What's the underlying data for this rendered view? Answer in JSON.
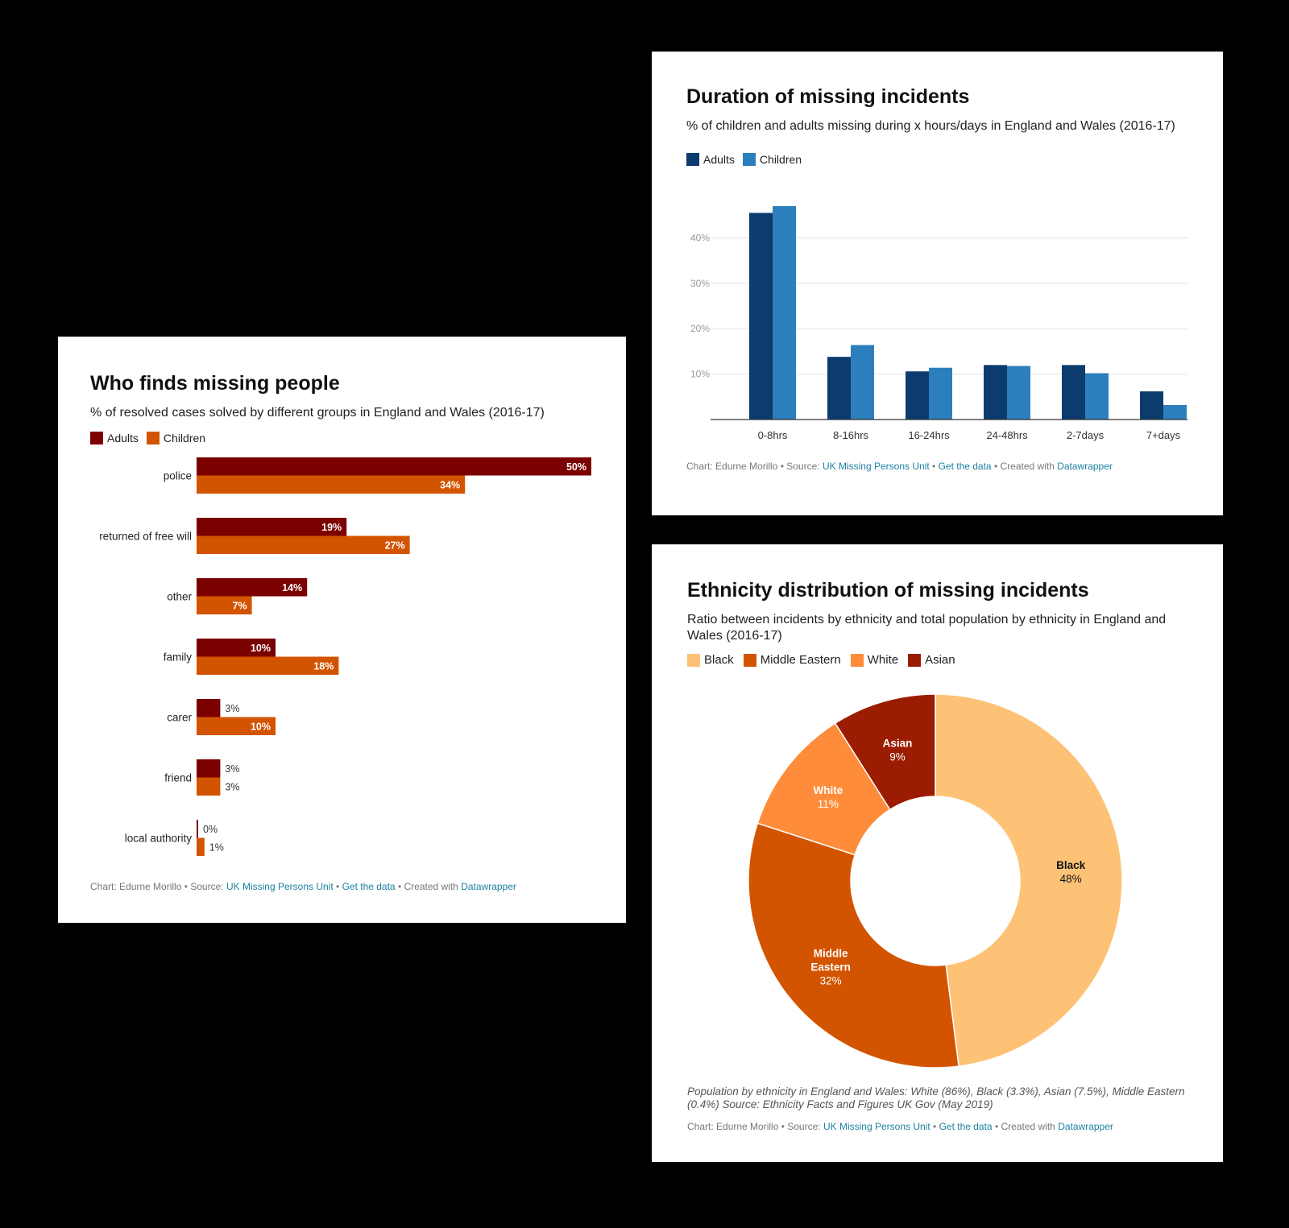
{
  "chart_data": [
    {
      "type": "bar",
      "orientation": "horizontal",
      "title": "Who finds missing people",
      "subtitle": "% of resolved cases solved by different groups in England and Wales (2016-17)",
      "categories": [
        "police",
        "returned of free will",
        "other",
        "family",
        "carer",
        "friend",
        "local authority"
      ],
      "series": [
        {
          "name": "Adults",
          "values": [
            50,
            19,
            14,
            10,
            3,
            3,
            0
          ],
          "color": "#7b0000"
        },
        {
          "name": "Children",
          "values": [
            34,
            27,
            7,
            18,
            10,
            3,
            1
          ],
          "color": "#d35400"
        }
      ],
      "value_labels": {
        "Adults": [
          "50%",
          "19%",
          "14%",
          "10%",
          "3%",
          "3%",
          "0%"
        ],
        "Children": [
          "34%",
          "27%",
          "7%",
          "18%",
          "10%",
          "3%",
          "1%"
        ]
      },
      "xlim": [
        0,
        50
      ],
      "legend": "top-left"
    },
    {
      "type": "bar",
      "title": "Duration of missing incidents",
      "subtitle": "% of children and adults missing during x hours/days in England and Wales (2016-17)",
      "categories": [
        "0-8hrs",
        "8-16hrs",
        "16-24hrs",
        "24-48hrs",
        "2-7days",
        "7+days"
      ],
      "series": [
        {
          "name": "Adults",
          "values": [
            45.5,
            13.8,
            10.6,
            12,
            12,
            6.2
          ],
          "color": "#0c3b6e"
        },
        {
          "name": "Children",
          "values": [
            47,
            16.4,
            11.4,
            11.8,
            10.2,
            3.2
          ],
          "color": "#2b7fbc"
        }
      ],
      "yticks": [
        "10%",
        "20%",
        "30%",
        "40%"
      ],
      "ylim": [
        0,
        50
      ],
      "grid": true,
      "legend": "top-left"
    },
    {
      "type": "pie",
      "donut": true,
      "title": "Ethnicity distribution of missing incidents",
      "subtitle": "Ratio between incidents by ethnicity and total population by ethnicity in England and Wales (2016-17)",
      "slices": [
        {
          "name": "Black",
          "value": 48,
          "label_lines": [
            "Black"
          ],
          "pct": "48%",
          "color": "#fdc276"
        },
        {
          "name": "Middle Eastern",
          "value": 32,
          "label_lines": [
            "Middle",
            "Eastern"
          ],
          "pct": "32%",
          "color": "#d35400"
        },
        {
          "name": "White",
          "value": 11,
          "label_lines": [
            "White"
          ],
          "pct": "11%",
          "color": "#ff8c3a"
        },
        {
          "name": "Asian",
          "value": 9,
          "label_lines": [
            "Asian"
          ],
          "pct": "9%",
          "color": "#9b1c00"
        }
      ],
      "legend": "top-left"
    }
  ],
  "footer": {
    "chart_by": "Chart: Edurne Morillo • Source:",
    "source_link": "UK Missing Persons Unit",
    "sep1": "•",
    "get_data": "Get the data",
    "created": "• Created with",
    "datawrapper": "Datawrapper"
  },
  "ethnicity_note": "Population by ethnicity in England and Wales: White (86%), Black (3.3%), Asian (7.5%), Middle Eastern (0.4%) Source: Ethnicity Facts and Figures UK Gov (May 2019)"
}
